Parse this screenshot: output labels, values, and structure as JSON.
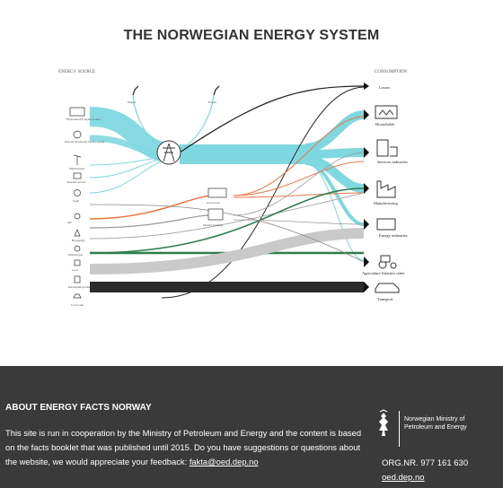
{
  "title": "THE NORWEGIAN ENERGY SYSTEM",
  "diagram": {
    "source_header": "ENERGY SOURCE",
    "consumption_header": "CONSUMPTION",
    "sources": [
      "Hydroelectric hydro power",
      "Non-hydroelectric hydro power",
      "Wind power",
      "Thermal power",
      "Solar",
      "Oil",
      "Bioenergy",
      "Natural gas",
      "Coal",
      "Petroleum products",
      "Coal coke"
    ],
    "import_label": "Import",
    "export_label": "Export",
    "node_gas_power": "Gas power",
    "node_district_heating": "District heating",
    "consumers": [
      "Losses",
      "Households",
      "Services industries",
      "Manufacturing",
      "Energy industries",
      "Agriculture fisheries other",
      "Transport"
    ]
  },
  "footer": {
    "heading": "ABOUT ENERGY FACTS NORWAY",
    "text": "This site is run in cooperation by the Ministry of Petroleum and Energy and the content is based on the facts booklet that was published until 2015. Do you have suggestions or questions about the website, we would appreciate your feedback: ",
    "email": "fakta@oed.dep.no",
    "ministry_name": "Norwegian Ministry of Petroleum and Energy",
    "org_nr": "ORG.NR. 977 161 630",
    "website": "oed.dep.no"
  }
}
